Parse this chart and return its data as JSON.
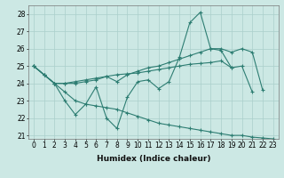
{
  "xlabel": "Humidex (Indice chaleur)",
  "x_values": [
    0,
    1,
    2,
    3,
    4,
    5,
    6,
    7,
    8,
    9,
    10,
    11,
    12,
    13,
    14,
    15,
    16,
    17,
    18,
    19,
    20,
    21,
    22,
    23
  ],
  "line_jagged": [
    25.0,
    24.5,
    24.0,
    23.0,
    22.2,
    22.8,
    23.8,
    22.0,
    21.4,
    23.2,
    24.1,
    24.2,
    23.7,
    24.1,
    25.5,
    27.5,
    28.1,
    26.0,
    25.9,
    24.9,
    25.0,
    23.5,
    null,
    null
  ],
  "line_upper": [
    25.0,
    24.5,
    24.0,
    24.0,
    24.0,
    24.1,
    24.2,
    24.4,
    24.1,
    24.5,
    24.7,
    24.9,
    25.0,
    25.2,
    25.4,
    25.6,
    25.8,
    26.0,
    26.0,
    25.8,
    26.0,
    25.8,
    23.6,
    null
  ],
  "line_mid": [
    25.0,
    24.5,
    24.0,
    24.0,
    24.1,
    24.2,
    24.3,
    24.4,
    24.5,
    24.55,
    24.6,
    24.7,
    24.8,
    24.9,
    25.0,
    25.1,
    25.15,
    25.2,
    25.3,
    24.9,
    null,
    null,
    null,
    null
  ],
  "line_lower": [
    25.0,
    24.5,
    24.0,
    23.5,
    23.0,
    22.8,
    22.7,
    22.6,
    22.5,
    22.3,
    22.1,
    21.9,
    21.7,
    21.6,
    21.5,
    21.4,
    21.3,
    21.2,
    21.1,
    21.0,
    21.0,
    20.9,
    20.85,
    20.8
  ],
  "line_color": "#2d7d72",
  "bg_color": "#cce8e4",
  "grid_color": "#aacfcb",
  "ylim": [
    20.8,
    28.5
  ],
  "yticks": [
    21,
    22,
    23,
    24,
    25,
    26,
    27,
    28
  ],
  "xlim": [
    -0.5,
    23.5
  ],
  "tick_fontsize": 5.5,
  "label_fontsize": 6.5
}
